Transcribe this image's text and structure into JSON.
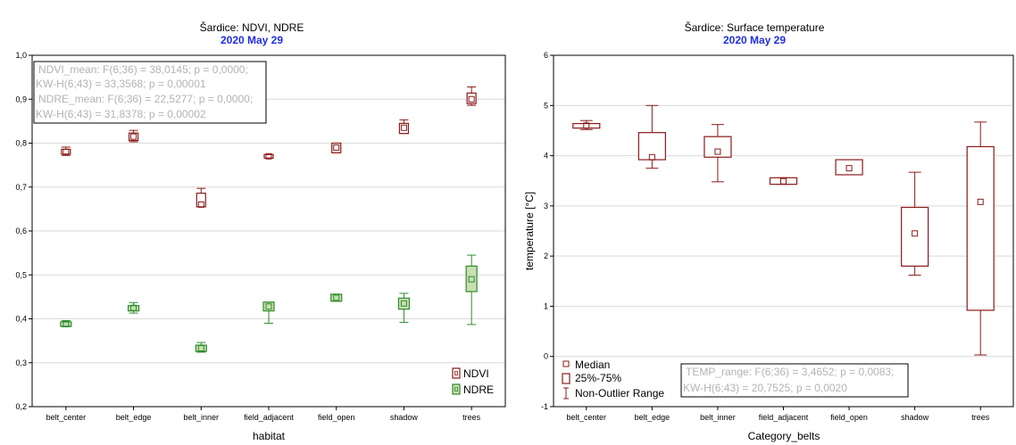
{
  "colors": {
    "ndvi": "#8b1a1a",
    "ndre_stroke": "#2e8b2e",
    "ndre_fill": "#c9dfb1",
    "temp": "#8b1a1a",
    "subtitle": "#1f2fe0",
    "stats_text": "#b3b3b3",
    "grid": "#d9d9d9"
  },
  "chart_data": [
    {
      "type": "box",
      "title": "Šardice: NDVI, NDRE",
      "subtitle": "2020 May 29",
      "xlabel": "habitat",
      "ylabel": "",
      "ylim": [
        0.2,
        1.0
      ],
      "yticks": [
        "0,2",
        "0,3",
        "0,4",
        "0,5",
        "0,6",
        "0,7",
        "0,8",
        "0,9",
        "1,0"
      ],
      "grid": true,
      "legend_position": "bottom-right",
      "categories": [
        "belt_center",
        "belt_edge",
        "belt_inner",
        "field_adjacent",
        "field_open",
        "shadow",
        "trees"
      ],
      "series": [
        {
          "name": "NDVI",
          "boxes": [
            {
              "median": 0.78,
              "q1": 0.775,
              "q3": 0.786,
              "min": 0.772,
              "max": 0.791
            },
            {
              "median": 0.815,
              "q1": 0.806,
              "q3": 0.823,
              "min": 0.803,
              "max": 0.829
            },
            {
              "median": 0.66,
              "q1": 0.655,
              "q3": 0.686,
              "min": 0.655,
              "max": 0.697
            },
            {
              "median": 0.77,
              "q1": 0.766,
              "q3": 0.774,
              "min": 0.766,
              "max": 0.774
            },
            {
              "median": 0.79,
              "q1": 0.778,
              "q3": 0.8,
              "min": 0.778,
              "max": 0.8
            },
            {
              "median": 0.835,
              "q1": 0.822,
              "q3": 0.845,
              "min": 0.822,
              "max": 0.853
            },
            {
              "median": 0.9,
              "q1": 0.89,
              "q3": 0.914,
              "min": 0.886,
              "max": 0.928
            }
          ]
        },
        {
          "name": "NDRE",
          "boxes": [
            {
              "median": 0.388,
              "q1": 0.383,
              "q3": 0.393,
              "min": 0.382,
              "max": 0.396
            },
            {
              "median": 0.425,
              "q1": 0.418,
              "q3": 0.43,
              "min": 0.413,
              "max": 0.437
            },
            {
              "median": 0.333,
              "q1": 0.326,
              "q3": 0.34,
              "min": 0.324,
              "max": 0.346
            },
            {
              "median": 0.428,
              "q1": 0.418,
              "q3": 0.438,
              "min": 0.39,
              "max": 0.438
            },
            {
              "median": 0.448,
              "q1": 0.44,
              "q3": 0.456,
              "min": 0.44,
              "max": 0.456
            },
            {
              "median": 0.435,
              "q1": 0.422,
              "q3": 0.447,
              "min": 0.392,
              "max": 0.458
            },
            {
              "median": 0.49,
              "q1": 0.462,
              "q3": 0.52,
              "min": 0.387,
              "max": 0.545
            }
          ]
        }
      ],
      "stats_text": [
        "NDVI_mean:   F(6;36) = 38,0145; p = 0,0000;",
        "KW-H(6;43) = 33,3568; p = 0,00001",
        "NDRE_mean:   F(6;36) = 22,5277; p = 0,0000;",
        "KW-H(6;43) = 31,8378; p = 0,00002"
      ]
    },
    {
      "type": "box",
      "title": "Šardice: Surface temperature",
      "subtitle": "2020 May 29",
      "xlabel": "Category_belts",
      "ylabel": "temperature [°C]",
      "ylim": [
        -1,
        6
      ],
      "yticks": [
        "-1",
        "0",
        "1",
        "2",
        "3",
        "4",
        "5",
        "6"
      ],
      "grid": true,
      "legend_position": "bottom-left",
      "categories": [
        "belt_center",
        "belt_edge",
        "belt_inner",
        "field_adjacent",
        "field_open",
        "shadow",
        "trees"
      ],
      "series": [
        {
          "name": "TEMP_range",
          "boxes": [
            {
              "median": 4.6,
              "q1": 4.55,
              "q3": 4.64,
              "min": 4.52,
              "max": 4.7
            },
            {
              "median": 3.97,
              "q1": 3.92,
              "q3": 4.46,
              "min": 3.75,
              "max": 5.0
            },
            {
              "median": 4.08,
              "q1": 3.97,
              "q3": 4.38,
              "min": 3.48,
              "max": 4.62
            },
            {
              "median": 3.49,
              "q1": 3.43,
              "q3": 3.56,
              "min": 3.43,
              "max": 3.56
            },
            {
              "median": 3.75,
              "q1": 3.62,
              "q3": 3.92,
              "min": 3.62,
              "max": 3.92
            },
            {
              "median": 2.45,
              "q1": 1.8,
              "q3": 2.97,
              "min": 1.62,
              "max": 3.67
            },
            {
              "median": 3.08,
              "q1": 0.92,
              "q3": 4.18,
              "min": 0.03,
              "max": 4.67
            }
          ]
        }
      ],
      "legend": [
        "Median",
        "25%-75%",
        "Non-Outlier Range"
      ],
      "stats_text": [
        "TEMP_range:   F(6;36) = 3,4652; p = 0,0083;",
        "KW-H(6;43) = 20,7525; p = 0,0020"
      ]
    }
  ]
}
